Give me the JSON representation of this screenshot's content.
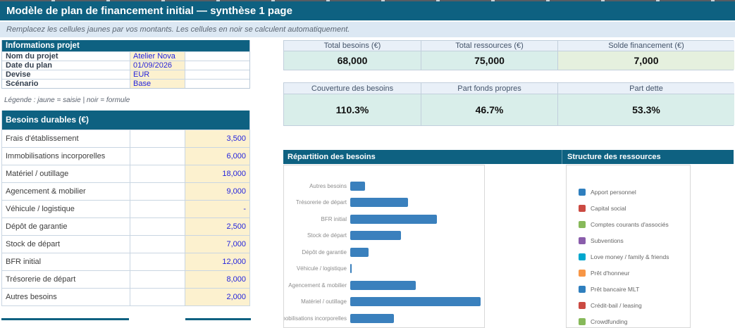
{
  "title": "Modèle de plan de financement initial — synthèse 1 page",
  "subtitle": "Remplacez les cellules jaunes par vos montants. Les cellules en noir se calculent automatiquement.",
  "legend_note": "Légende : jaune = saisie | noir = formule",
  "info": {
    "header": "Informations projet",
    "rows": [
      {
        "label": "Nom du projet",
        "value": "Atelier Nova"
      },
      {
        "label": "Date du plan",
        "value": "01/09/2026"
      },
      {
        "label": "Devise",
        "value": "EUR"
      },
      {
        "label": "Scénario",
        "value": "Base"
      }
    ]
  },
  "besoins": {
    "header": "Besoins durables (€)",
    "rows": [
      {
        "label": "Frais d'établissement",
        "value": "3,500"
      },
      {
        "label": "Immobilisations incorporelles",
        "value": "6,000"
      },
      {
        "label": "Matériel / outillage",
        "value": "18,000"
      },
      {
        "label": "Agencement & mobilier",
        "value": "9,000"
      },
      {
        "label": "Véhicule / logistique",
        "value": "-"
      },
      {
        "label": "Dépôt de garantie",
        "value": "2,500"
      },
      {
        "label": "Stock de départ",
        "value": "7,000"
      },
      {
        "label": "BFR initial",
        "value": "12,000"
      },
      {
        "label": "Trésorerie de départ",
        "value": "8,000"
      },
      {
        "label": "Autres besoins",
        "value": "2,000"
      }
    ]
  },
  "kpis": {
    "row1": [
      {
        "label": "Total besoins (€)",
        "value": "68,000",
        "highlight": "teal"
      },
      {
        "label": "Total ressources (€)",
        "value": "75,000",
        "highlight": "teal"
      },
      {
        "label": "Solde financement (€)",
        "value": "7,000",
        "highlight": "green"
      }
    ],
    "row2": [
      {
        "label": "Couverture des besoins",
        "value": "110.3%",
        "highlight": "teal"
      },
      {
        "label": "Part fonds propres",
        "value": "46.7%",
        "highlight": "teal"
      },
      {
        "label": "Part dette",
        "value": "53.3%",
        "highlight": "teal"
      }
    ]
  },
  "charts": {
    "left_title": "Répartition des besoins",
    "right_title": "Structure des ressources"
  },
  "chart_data": [
    {
      "type": "bar",
      "orientation": "horizontal",
      "title": "Répartition des besoins",
      "categories": [
        "Autres besoins",
        "Trésorerie de départ",
        "BFR initial",
        "Stock de départ",
        "Dépôt de garantie",
        "Véhicule / logistique",
        "Agencement & mobilier",
        "Matériel / outillage",
        "Immobilisations incorporelles"
      ],
      "values": [
        2000,
        8000,
        12000,
        7000,
        2500,
        0,
        9000,
        18000,
        6000
      ],
      "xlim": [
        0,
        18000
      ],
      "grid": false,
      "bar_color": "#3A80BD"
    },
    {
      "type": "pie",
      "title": "Structure des ressources",
      "legend_position": "left",
      "legend": [
        {
          "label": "Apport personnel",
          "color": "#2F7FBE"
        },
        {
          "label": "Capital social",
          "color": "#CB4A42"
        },
        {
          "label": "Comptes courants d'associés",
          "color": "#87B95A"
        },
        {
          "label": "Subventions",
          "color": "#8A5DAB"
        },
        {
          "label": "Love money / family & friends",
          "color": "#00A7CE"
        },
        {
          "label": "Prêt d'honneur",
          "color": "#F79646"
        },
        {
          "label": "Prêt bancaire MLT",
          "color": "#2F7FBE"
        },
        {
          "label": "Crédit-bail / leasing",
          "color": "#CB4A42"
        },
        {
          "label": "Crowdfunding",
          "color": "#87B95A"
        }
      ]
    }
  ],
  "colors": {
    "header_teal": "#0E6181",
    "input_cell_bg": "#FCF1CF",
    "input_text_blue": "#2323DD",
    "kpi_value_bg": "#D9EEEA",
    "kpi_green_bg": "#E5F0DE",
    "bar_blue": "#3A80BD"
  }
}
